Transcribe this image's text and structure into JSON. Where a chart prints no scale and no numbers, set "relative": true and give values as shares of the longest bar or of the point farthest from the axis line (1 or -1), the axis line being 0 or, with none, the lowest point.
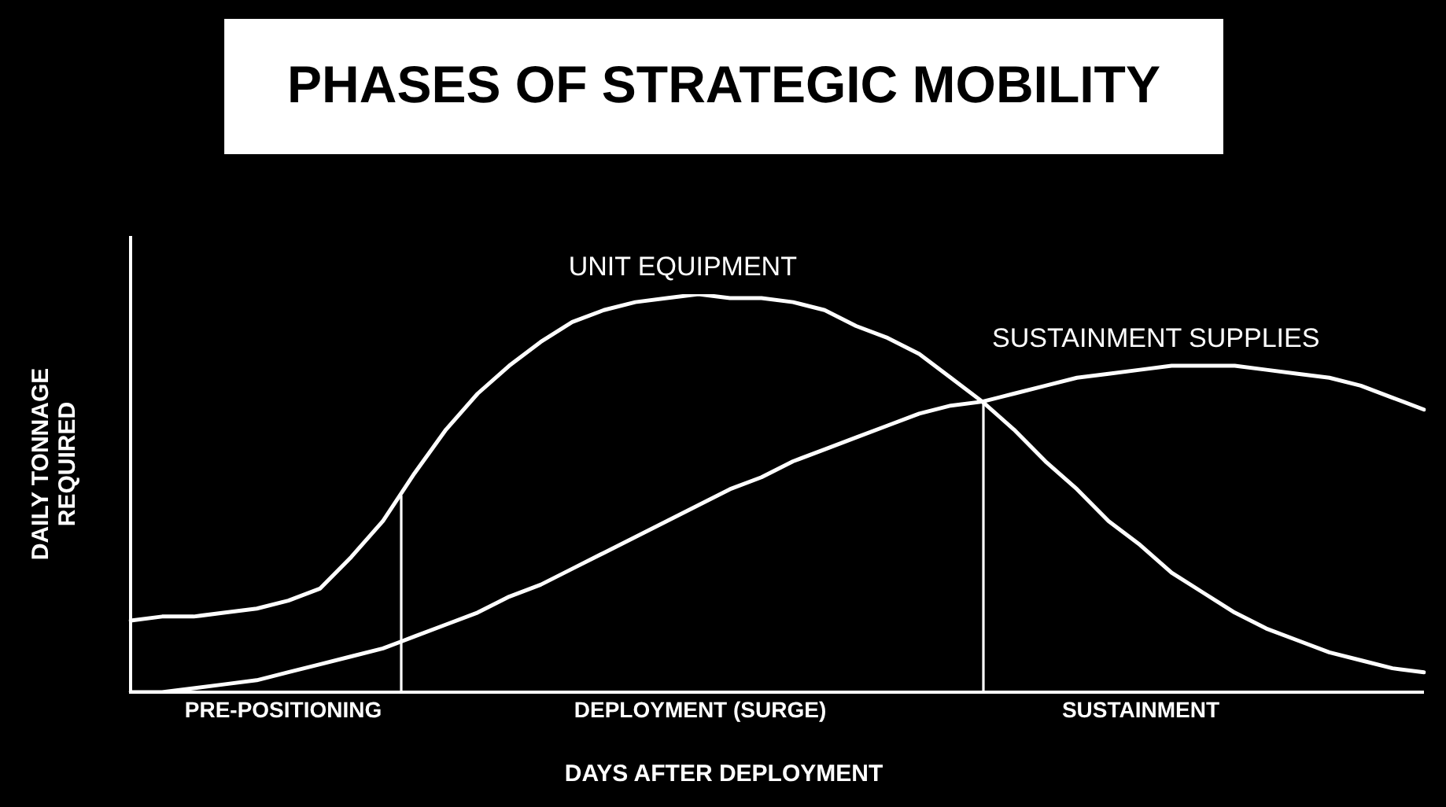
{
  "chart_data": {
    "type": "line",
    "title": "PHASES OF STRATEGIC MOBILITY",
    "xlabel": "DAYS AFTER DEPLOYMENT",
    "ylabel": "DAILY TONNAGE REQUIRED",
    "relative": true,
    "legend": false,
    "marker": "none",
    "line_style": "solid",
    "categories": [
      null,
      null,
      null,
      null,
      null,
      null,
      null,
      null,
      null,
      null,
      null,
      null,
      null,
      null,
      null,
      null,
      null,
      null,
      null,
      null,
      null,
      null,
      null,
      null,
      null,
      null,
      null,
      null,
      null,
      null,
      null,
      null,
      null,
      null,
      null,
      null,
      null,
      null,
      null,
      null,
      null,
      null
    ],
    "series": [
      {
        "name": "UNIT EQUIPMENT",
        "color": "#ffffff",
        "values": [
          0.18,
          0.19,
          0.19,
          0.2,
          0.21,
          0.23,
          0.26,
          0.34,
          0.43,
          0.55,
          0.66,
          0.75,
          0.82,
          0.88,
          0.93,
          0.96,
          0.98,
          0.99,
          1,
          0.99,
          0.99,
          0.98,
          0.96,
          0.92,
          0.89,
          0.85,
          0.79,
          0.73,
          0.66,
          0.58,
          0.51,
          0.43,
          0.37,
          0.3,
          0.25,
          0.2,
          0.16,
          0.13,
          0.1,
          0.08,
          0.06,
          0.05
        ]
      },
      {
        "name": "SUSTAINMENT SUPPLIES",
        "color": "#ffffff",
        "values": [
          0,
          0,
          0.01,
          0.02,
          0.03,
          0.05,
          0.07,
          0.09,
          0.11,
          0.14,
          0.17,
          0.2,
          0.24,
          0.27,
          0.31,
          0.35,
          0.39,
          0.43,
          0.47,
          0.51,
          0.54,
          0.58,
          0.61,
          0.64,
          0.67,
          0.7,
          0.72,
          0.73,
          0.75,
          0.77,
          0.79,
          0.8,
          0.81,
          0.82,
          0.82,
          0.82,
          0.81,
          0.8,
          0.79,
          0.77,
          0.74,
          0.71
        ]
      }
    ],
    "annotations": [
      "PRE-POSITIONING",
      "DEPLOYMENT (SURGE)",
      "SUSTAINMENT"
    ]
  }
}
